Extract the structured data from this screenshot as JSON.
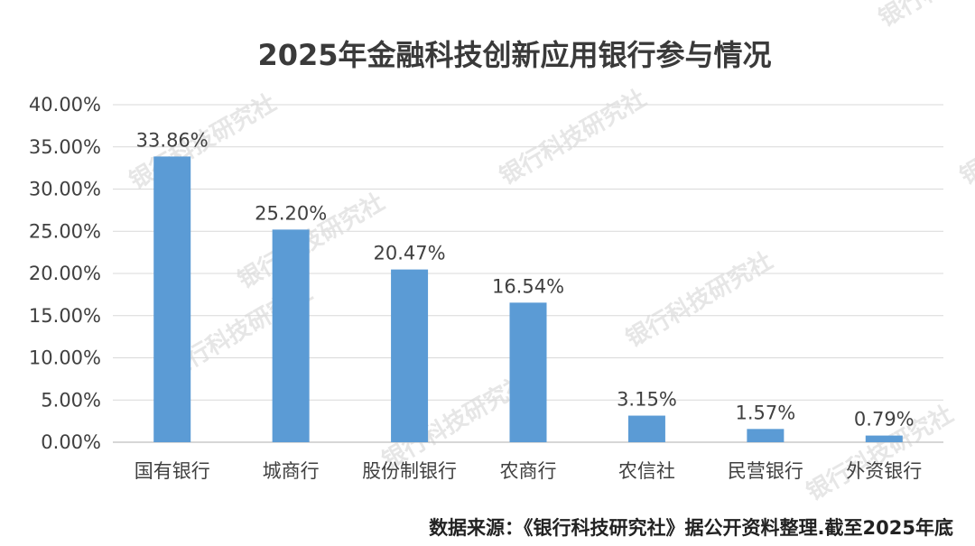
{
  "chart_data": {
    "type": "bar",
    "title": "2025年金融科技创新应用银行参与情况",
    "categories": [
      "国有银行",
      "城商行",
      "股份制银行",
      "农商行",
      "农信社",
      "民营银行",
      "外资银行"
    ],
    "values": [
      33.86,
      25.2,
      20.47,
      16.54,
      3.15,
      1.57,
      0.79
    ],
    "data_labels": [
      "33.86%",
      "25.20%",
      "20.47%",
      "16.54%",
      "3.15%",
      "1.57%",
      "0.79%"
    ],
    "ylim": [
      0,
      40
    ],
    "yticks": [
      0,
      5,
      10,
      15,
      20,
      25,
      30,
      35,
      40
    ],
    "ytick_labels": [
      "0.00%",
      "5.00%",
      "10.00%",
      "15.00%",
      "20.00%",
      "25.00%",
      "30.00%",
      "35.00%",
      "40.00%"
    ],
    "grid": true,
    "bar_color": "#5b9bd5"
  },
  "source_note": "数据来源：《银行科技研究社》据公开资料整理.截至2025年底",
  "watermark_text": "银行科技研究社"
}
